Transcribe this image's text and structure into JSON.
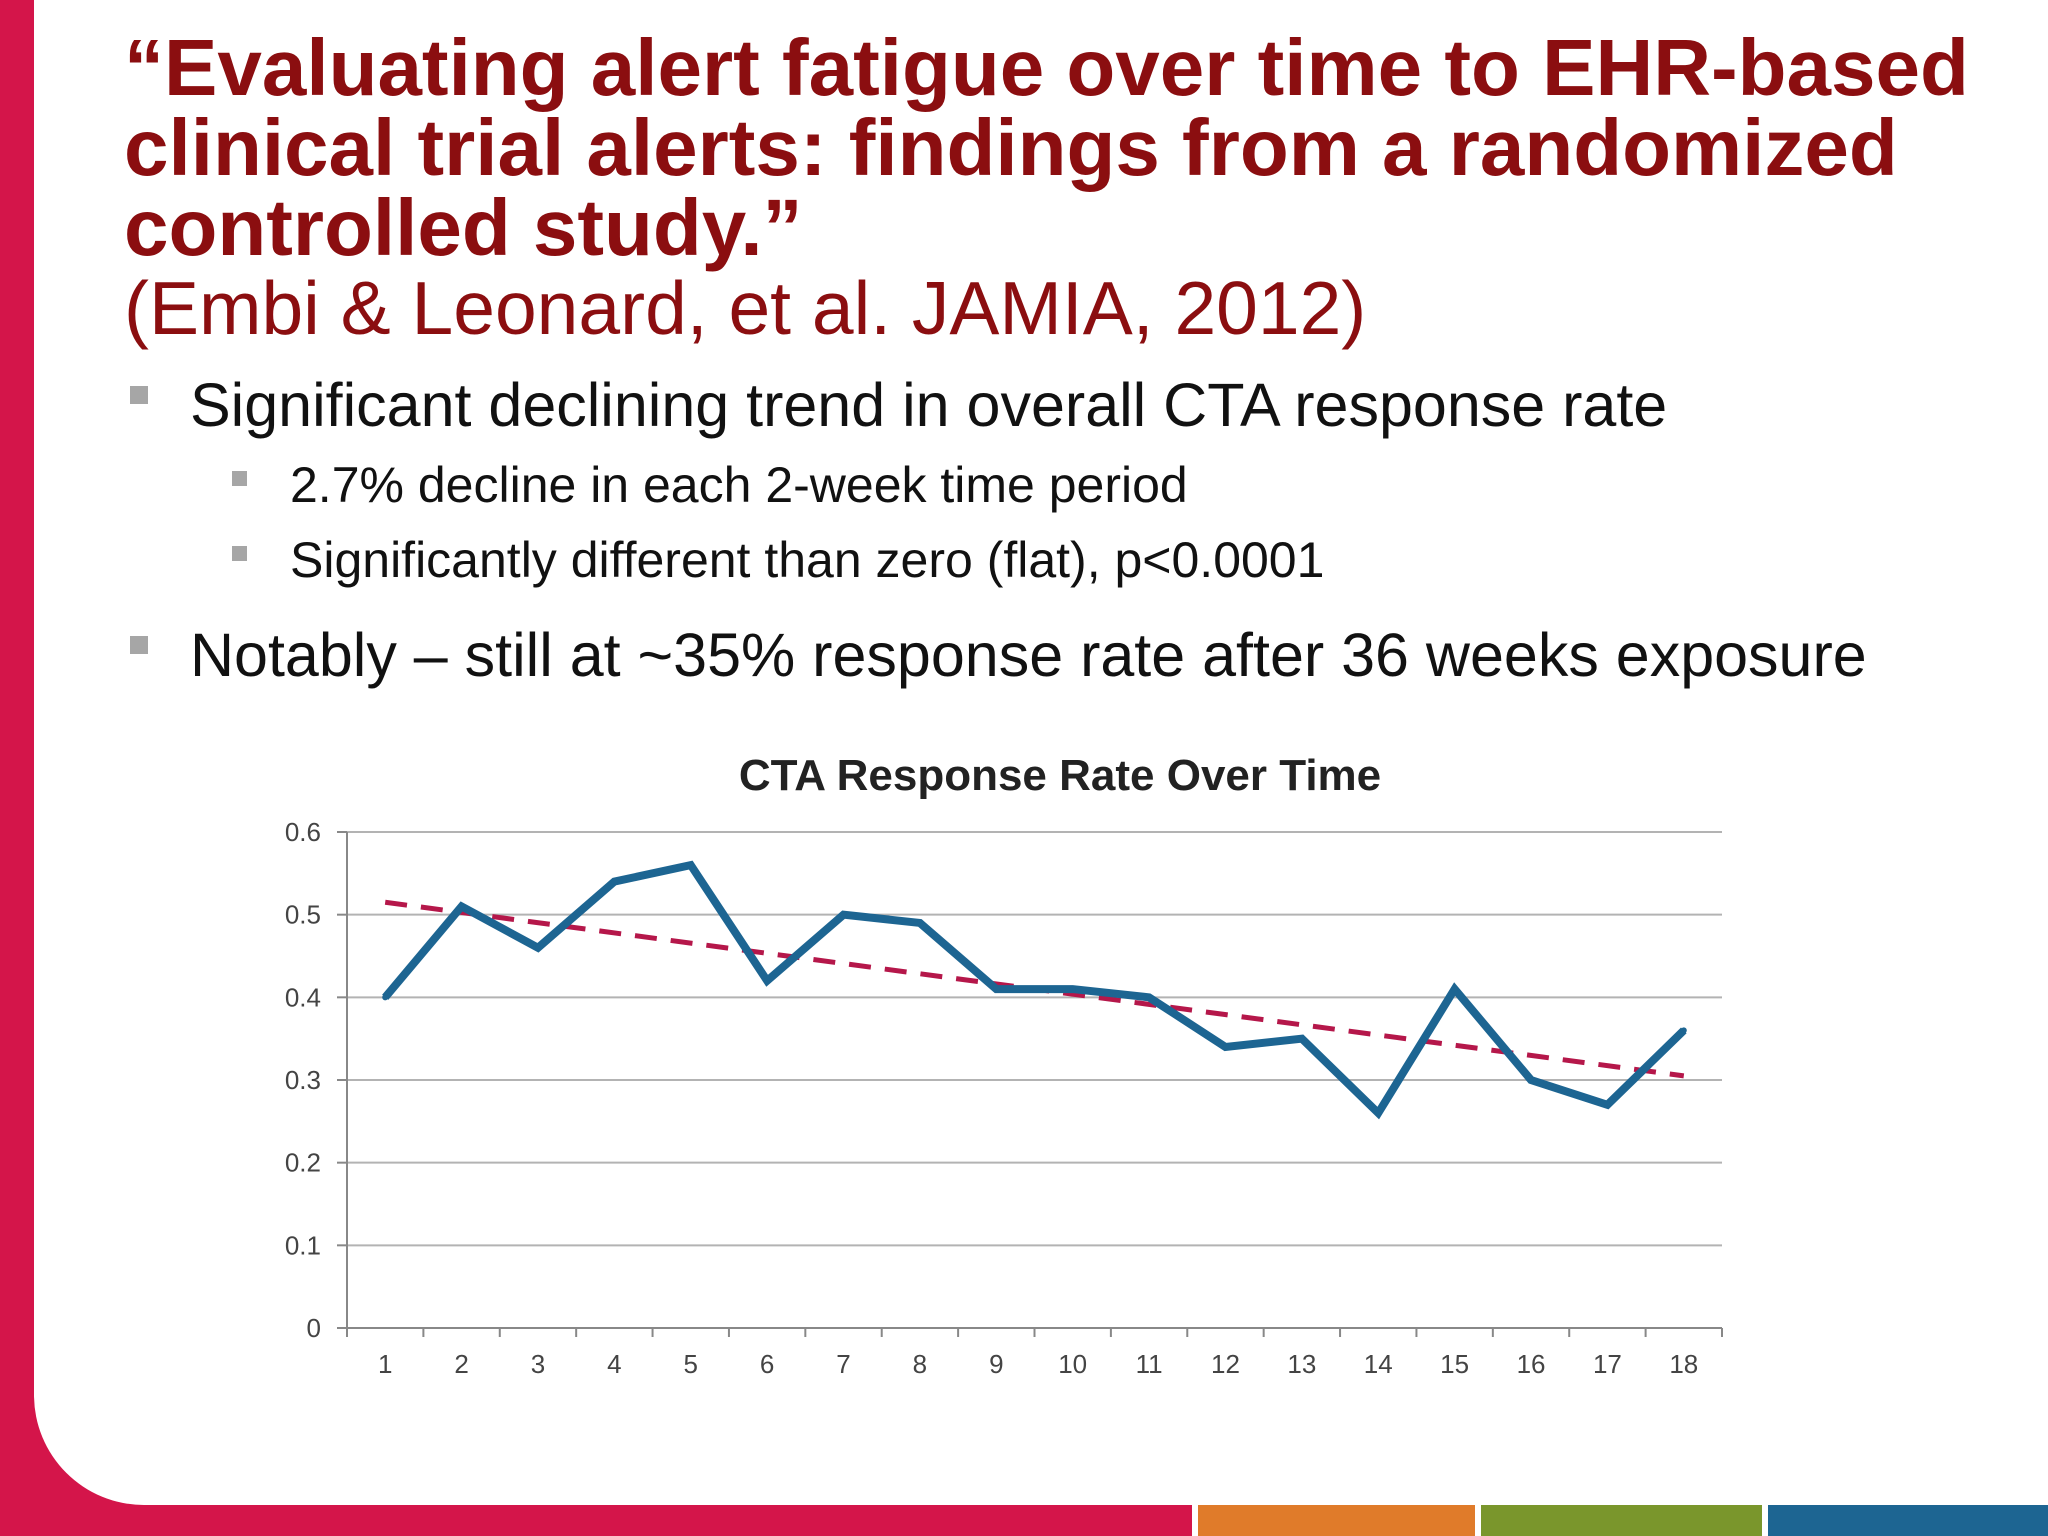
{
  "slide": {
    "title": "“Evaluating alert fatigue over time to EHR-based clinical trial alerts: findings from a randomized controlled study.”",
    "citation": "(Embi & Leonard, et al. JAMIA, 2012)",
    "bullets": {
      "b1": "Significant declining trend in overall CTA response rate",
      "b2": "2.7% decline in each 2-week time period",
      "b3": "Significantly different than zero (flat), p<0.0001",
      "b4": "Notably – still at ~35% response rate after 36 weeks exposure"
    }
  },
  "colors": {
    "title": "#8b0e10",
    "series_line": "#1d6592",
    "trend_line": "#b5174a",
    "frame_red": "#d4154a"
  },
  "chart_data": {
    "type": "line",
    "title": "CTA Response Rate Over Time",
    "xlabel": "",
    "ylabel": "",
    "categories": [
      "1",
      "2",
      "3",
      "4",
      "5",
      "6",
      "7",
      "8",
      "9",
      "10",
      "11",
      "12",
      "13",
      "14",
      "15",
      "16",
      "17",
      "18"
    ],
    "series": [
      {
        "values": [
          0.4,
          0.51,
          0.46,
          0.54,
          0.56,
          0.42,
          0.5,
          0.49,
          0.41,
          0.41,
          0.4,
          0.34,
          0.35,
          0.26,
          0.41,
          0.3,
          0.27,
          0.36
        ]
      }
    ],
    "trendline": {
      "style": "dashed",
      "start": 0.515,
      "end": 0.305
    },
    "ylim": [
      0,
      0.6
    ],
    "yticks": [
      "0",
      "0.1",
      "0.2",
      "0.3",
      "0.4",
      "0.5",
      "0.6"
    ],
    "grid": true,
    "legend": "none"
  }
}
